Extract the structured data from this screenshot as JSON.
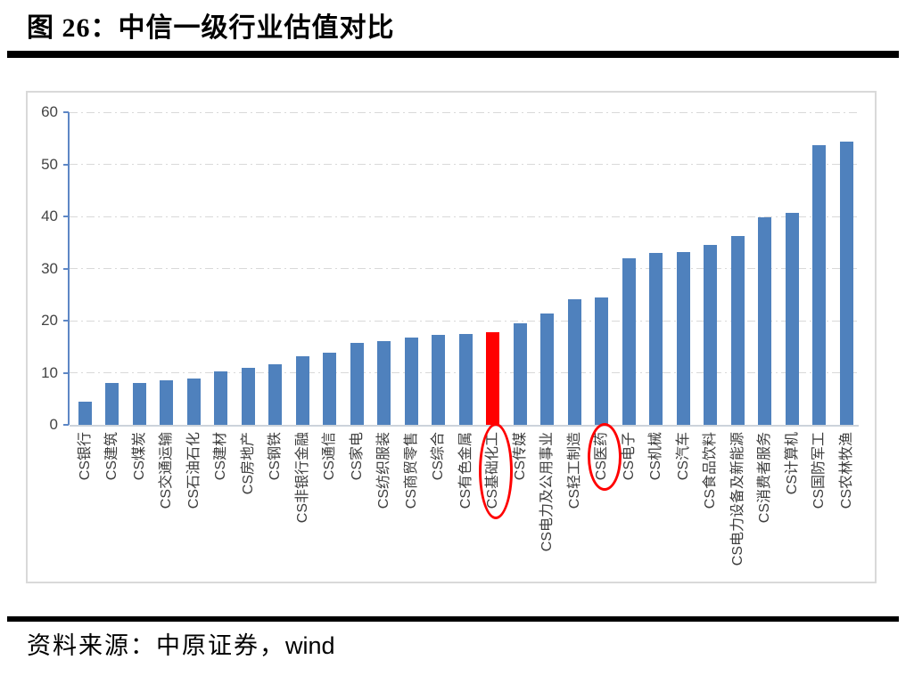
{
  "figure": {
    "title": "图 26：中信一级行业估值对比",
    "source_prefix": "资料来源：中原证券，",
    "source_suffix": "wind"
  },
  "chart_data": {
    "type": "bar",
    "title": "中信一级行业估值对比",
    "xlabel": "",
    "ylabel": "",
    "ylim": [
      0,
      60
    ],
    "yticks": [
      0,
      10,
      20,
      30,
      40,
      50,
      60
    ],
    "grid": "horizontal-dash-dot",
    "legend": "none",
    "bar_color": "#4f81bd",
    "highlight_color": "#ff0000",
    "highlight_index": 15,
    "circled_label_indices": [
      15,
      19
    ],
    "categories": [
      "CS银行",
      "CS建筑",
      "CS煤炭",
      "CS交通运输",
      "CS石油石化",
      "CS建材",
      "CS房地产",
      "CS钢铁",
      "CS非银行金融",
      "CS通信",
      "CS家电",
      "CS纺织服装",
      "CS商贸零售",
      "CS综合",
      "CS有色金属",
      "CS基础化工",
      "CS传媒",
      "CS电力及公用事业",
      "CS轻工制造",
      "CS医药",
      "CS电子",
      "CS机械",
      "CS汽车",
      "CS食品饮料",
      "CS电力设备及新能源",
      "CS消费者服务",
      "CS计算机",
      "CS国防军工",
      "CS农林牧渔"
    ],
    "values": [
      4.4,
      8.0,
      8.1,
      8.5,
      8.9,
      10.3,
      11.0,
      11.7,
      13.1,
      13.9,
      15.7,
      16.1,
      16.8,
      17.2,
      17.4,
      17.8,
      19.5,
      21.4,
      24.1,
      24.4,
      32.0,
      33.0,
      33.1,
      34.5,
      36.2,
      39.9,
      40.6,
      53.6,
      54.3
    ]
  },
  "colors": {
    "accent_blue": "#4f81bd",
    "highlight_red": "#ff0000",
    "grid_gray": "#d9d9d9",
    "axis_blue": "#5e87c5",
    "frame_gray": "#d9d9d9",
    "text_dark": "#3d3d3d"
  }
}
